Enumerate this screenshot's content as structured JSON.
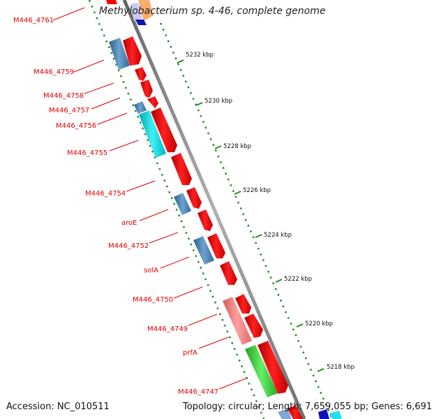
{
  "title": "Methylobacterium sp. 4-46, complete genome",
  "accession": "Accession: NC_010511",
  "topology": "Topology: circular; Length: 7,659,055 bp; Genes: 6,691",
  "genes": [
    {
      "name": "M446_4761",
      "color": "#ff0000"
    },
    {
      "name": "M446_4759",
      "color": "#ff0000"
    },
    {
      "name": "M446_4758",
      "color": "#ff0000"
    },
    {
      "name": "M446_4757",
      "color": "#ff0000"
    },
    {
      "name": "M446_4756",
      "color": "#ff0000"
    },
    {
      "name": "M446_4755",
      "color": "#ff0000"
    },
    {
      "name": "M446_4754",
      "color": "#ff0000"
    },
    {
      "name": "aroE",
      "color": "#ff0000"
    },
    {
      "name": "M446_4752",
      "color": "#ff0000"
    },
    {
      "name": "solA",
      "color": "#ff0000"
    },
    {
      "name": "M446_4750",
      "color": "#ff0000"
    },
    {
      "name": "M446_4749",
      "color": "#ff0000"
    },
    {
      "name": "prfA",
      "color": "#ff0000"
    },
    {
      "name": "M446_4747",
      "color": "#ff0000"
    }
  ],
  "ticks": [
    "5232 kbp",
    "5230 kbp",
    "5228 kbp",
    "5226 kbp",
    "5224 kbp",
    "5222 kbp",
    "5220 kbp",
    "5218 kbp"
  ],
  "colors": {
    "cds": "#ff0000",
    "backbone": "#888888",
    "dotted_ring": "#228b22",
    "cog_blue": "#4682b4",
    "cog_cyan": "#00d8e0",
    "cog_pink": "#f08080",
    "cog_green": "#33cc33"
  }
}
